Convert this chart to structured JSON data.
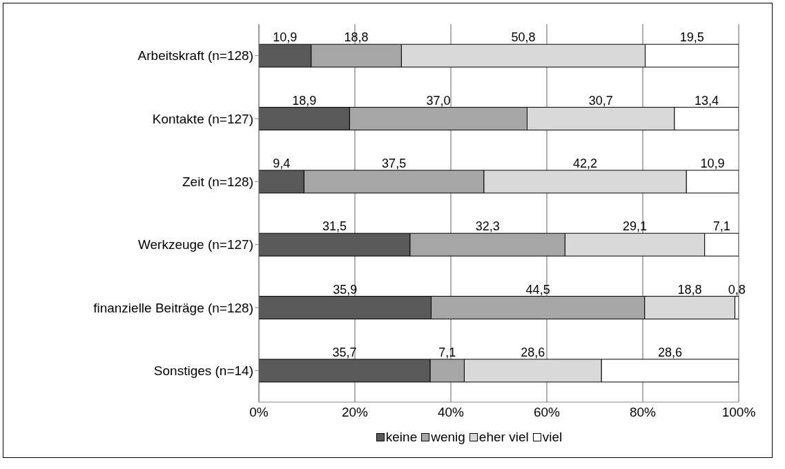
{
  "chart_data": {
    "type": "bar",
    "orientation": "horizontal",
    "stacked": true,
    "categories": [
      "Arbeitskraft (n=128)",
      "Kontakte (n=127)",
      "Zeit (n=128)",
      "Werkzeuge (n=127)",
      "finanzielle Beiträge (n=128)",
      "Sonstiges  (n=14)"
    ],
    "series": [
      {
        "name": "keine",
        "color": "#595959",
        "values": [
          10.9,
          18.9,
          9.4,
          31.5,
          35.9,
          35.7
        ],
        "value_labels": [
          "10,9",
          "18,9",
          "9,4",
          "31,5",
          "35,9",
          "35,7"
        ]
      },
      {
        "name": "wenig",
        "color": "#a6a6a6",
        "values": [
          18.8,
          37.0,
          37.5,
          32.3,
          44.5,
          7.1
        ],
        "value_labels": [
          "18,8",
          "37,0",
          "37,5",
          "32,3",
          "44,5",
          "7,1"
        ]
      },
      {
        "name": "eher viel",
        "color": "#d9d9d9",
        "values": [
          50.8,
          30.7,
          42.2,
          29.1,
          18.8,
          28.6
        ],
        "value_labels": [
          "50,8",
          "30,7",
          "42,2",
          "29,1",
          "18,8",
          "28,6"
        ]
      },
      {
        "name": "viel",
        "color": "#ffffff",
        "values": [
          19.5,
          13.4,
          10.9,
          7.1,
          0.8,
          28.6
        ],
        "value_labels": [
          "19,5",
          "13,4",
          "10,9",
          "7,1",
          "0,8",
          "28,6"
        ]
      }
    ],
    "xlim": [
      0,
      100
    ],
    "xticks": [
      {
        "value": 0,
        "label": "0%"
      },
      {
        "value": 20,
        "label": "20%"
      },
      {
        "value": 40,
        "label": "40%"
      },
      {
        "value": 60,
        "label": "60%"
      },
      {
        "value": 80,
        "label": "80%"
      },
      {
        "value": 100,
        "label": "100%"
      }
    ],
    "grid": "x",
    "legend": "bottom"
  }
}
